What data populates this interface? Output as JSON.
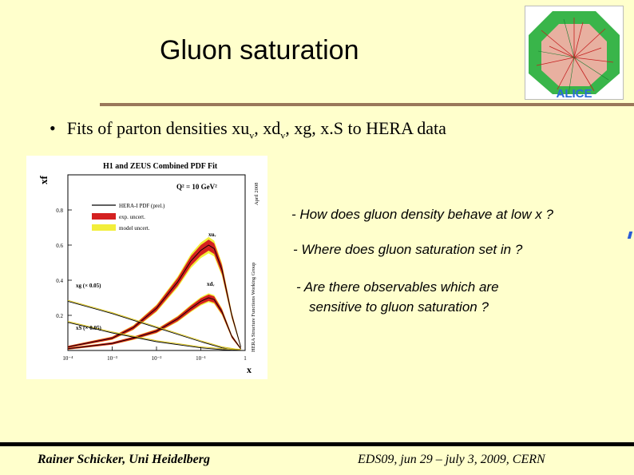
{
  "slide": {
    "title": "Gluon saturation",
    "bullet": {
      "pre": "Fits of parton densities xu",
      "sub1": "v",
      "mid": ", xd",
      "sub2": "v",
      "post": ", xg, x.S to HERA data"
    },
    "questions": [
      "- How does gluon density behave at low x ?",
      "- Where does gluon saturation set in ?",
      "- Are there observables which are",
      "sensitive to gluon saturation ?"
    ],
    "footer_left": "Rainer Schicker, Uni Heidelberg",
    "footer_right": "EDS09,  jun 29 – july 3, 2009, CERN",
    "logo_text": "ALICE"
  },
  "figure_text": {
    "title": "H1 and ZEUS Combined PDF Fit",
    "q2": "Q² = 10 GeV²",
    "side_date": "April 2008",
    "side_group": "HERA Structure Functions Working Group",
    "ylabel": "xf",
    "xlabel": "x",
    "legend": [
      "HERA-I PDF (prel.)",
      "exp. uncert.",
      "model uncert."
    ],
    "curve_labels": {
      "xuv": "xuᵥ",
      "xdv": "xdᵥ",
      "xg": "xg (× 0.05)",
      "xs": "xS (× 0.05)"
    }
  },
  "chart_data": {
    "type": "line",
    "title": "H1 and ZEUS Combined PDF Fit",
    "xlabel": "x",
    "ylabel": "xf",
    "xscale": "log",
    "xlim": [
      0.0001,
      1
    ],
    "ylim": [
      0,
      1
    ],
    "x_ticks": [
      "10⁻⁴",
      "10⁻³",
      "10⁻²",
      "10⁻¹",
      "1"
    ],
    "y_ticks": [
      "0.2",
      "0.4",
      "0.6",
      "0.8"
    ],
    "legend": [
      "HERA-I PDF (prel.)",
      "exp. uncert.",
      "model uncert."
    ],
    "legend_position": "top-left",
    "series": [
      {
        "name": "xuᵥ",
        "band": "red/yellow",
        "x": [
          0.0001,
          0.001,
          0.003,
          0.01,
          0.03,
          0.06,
          0.1,
          0.15,
          0.2,
          0.3,
          0.5,
          0.8
        ],
        "y": [
          0.02,
          0.07,
          0.13,
          0.24,
          0.39,
          0.51,
          0.57,
          0.6,
          0.58,
          0.46,
          0.2,
          0.02
        ]
      },
      {
        "name": "xdᵥ",
        "band": "red/yellow",
        "x": [
          0.0001,
          0.001,
          0.003,
          0.01,
          0.03,
          0.06,
          0.1,
          0.15,
          0.2,
          0.3,
          0.5,
          0.8
        ],
        "y": [
          0.01,
          0.04,
          0.07,
          0.11,
          0.18,
          0.24,
          0.28,
          0.3,
          0.29,
          0.22,
          0.08,
          0.01
        ]
      },
      {
        "name": "xg (× 0.05)",
        "x": [
          0.0001,
          0.001,
          0.01,
          0.1,
          0.3,
          0.6,
          0.8
        ],
        "y": [
          0.28,
          0.21,
          0.13,
          0.05,
          0.015,
          0.003,
          0.001
        ]
      },
      {
        "name": "xS (× 0.05)",
        "x": [
          0.0001,
          0.001,
          0.01,
          0.1,
          0.3,
          0.6,
          0.8
        ],
        "y": [
          0.16,
          0.1,
          0.05,
          0.015,
          0.005,
          0.001,
          0.0005
        ]
      }
    ]
  },
  "colors": {
    "background": "#FFFFCC",
    "rule": "#99775A",
    "exp_band": "#d42020",
    "model_band": "#f2ee3a"
  }
}
